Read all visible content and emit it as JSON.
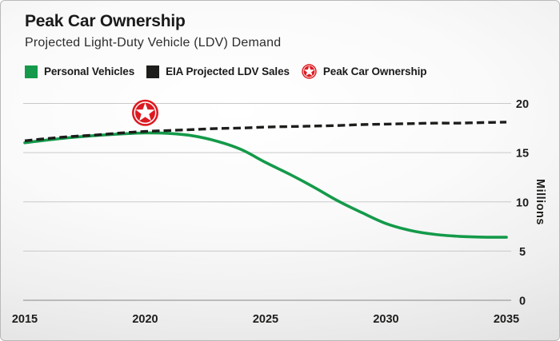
{
  "header": {
    "title": "Peak Car Ownership",
    "subtitle": "Projected Light-Duty Vehicle (LDV) Demand"
  },
  "legend": {
    "items": [
      {
        "label": "Personal Vehicles",
        "swatch": "green-square",
        "color": "#149a4a"
      },
      {
        "label": "EIA Projected LDV Sales",
        "swatch": "black-square",
        "color": "#1d1d1b"
      },
      {
        "label": "Peak Car Ownership",
        "swatch": "red-circle-star",
        "color": "#dd1a21"
      }
    ]
  },
  "chart_data": {
    "type": "line",
    "title": "Peak Car Ownership",
    "subtitle": "Projected Light-Duty Vehicle (LDV) Demand",
    "xlabel": "",
    "ylabel": "Millions",
    "xlim": [
      2015,
      2035
    ],
    "ylim": [
      0,
      20
    ],
    "x_ticks": [
      2015,
      2020,
      2025,
      2030,
      2035
    ],
    "y_ticks": [
      0,
      5,
      10,
      15,
      20
    ],
    "grid": "horizontal",
    "legend_position": "top",
    "x": [
      2015,
      2016,
      2017,
      2018,
      2019,
      2020,
      2021,
      2022,
      2023,
      2024,
      2025,
      2026,
      2027,
      2028,
      2029,
      2030,
      2031,
      2032,
      2033,
      2034,
      2035
    ],
    "series": [
      {
        "name": "Personal Vehicles",
        "style": "solid",
        "color": "#149a4a",
        "values": [
          16.0,
          16.3,
          16.55,
          16.75,
          16.9,
          17.0,
          16.95,
          16.7,
          16.15,
          15.3,
          14.0,
          12.8,
          11.5,
          10.1,
          8.9,
          7.8,
          7.1,
          6.7,
          6.5,
          6.42,
          6.4
        ]
      },
      {
        "name": "EIA Projected LDV Sales",
        "style": "dashed",
        "color": "#1d1d1b",
        "values": [
          16.2,
          16.45,
          16.65,
          16.8,
          17.0,
          17.15,
          17.25,
          17.35,
          17.45,
          17.5,
          17.6,
          17.65,
          17.7,
          17.75,
          17.85,
          17.9,
          17.95,
          18.0,
          18.0,
          18.05,
          18.1
        ]
      }
    ],
    "marker": {
      "name": "Peak Car Ownership",
      "shape": "star-in-circle",
      "color": "#dd1a21",
      "x": 2020,
      "y": 19.05
    }
  },
  "colors": {
    "grid": "#c9c9c9",
    "baseline": "#a9a9a9",
    "text": "#1d1d1b",
    "green": "#149a4a",
    "red": "#dd1a21",
    "black": "#1d1d1b"
  }
}
